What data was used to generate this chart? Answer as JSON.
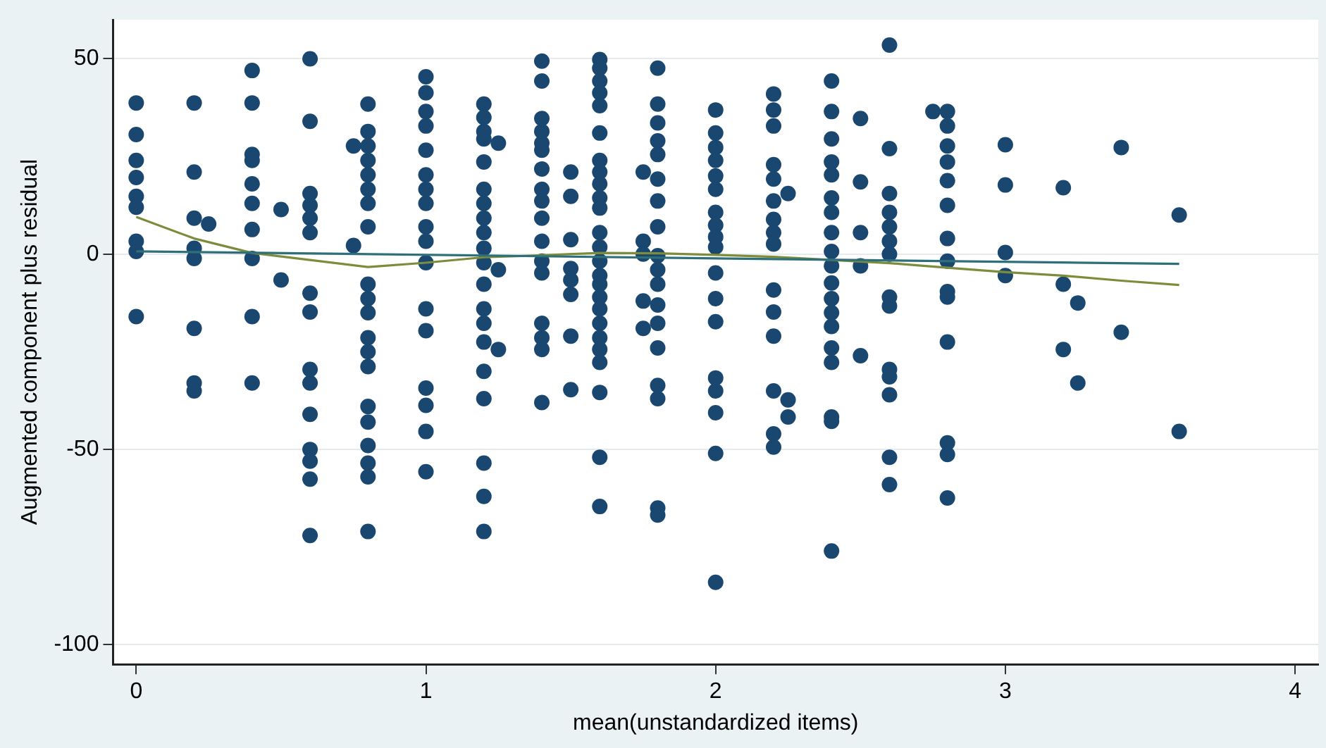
{
  "chart_data": {
    "type": "scatter",
    "xlabel": "mean(unstandardized items)",
    "ylabel": "Augmented component plus residual",
    "xlim": [
      -0.08,
      4.08
    ],
    "ylim": [
      -105,
      60
    ],
    "xticks": [
      0,
      1,
      2,
      3,
      4
    ],
    "yticks": [
      -100,
      -50,
      0,
      50
    ],
    "grid": "y",
    "legend": false,
    "series": [
      {
        "marker": "circle",
        "color": "#1a476f",
        "x": [
          0,
          0,
          0,
          0,
          0,
          0,
          0,
          0,
          0,
          0.2,
          0.2,
          0.2,
          0.25,
          0.2,
          0.2,
          0.2,
          0.2,
          0.2,
          0.4,
          0.4,
          0.4,
          0.4,
          0.4,
          0.4,
          0.4,
          0.4,
          0.4,
          0.4,
          0.5,
          0.5,
          0.6,
          0.6,
          0.6,
          0.6,
          0.6,
          0.6,
          0.6,
          0.6,
          0.6,
          0.6,
          0.6,
          0.6,
          0.6,
          0.6,
          0.6,
          0.75,
          0.75,
          0.8,
          0.8,
          0.8,
          0.8,
          0.8,
          0.8,
          0.8,
          0.8,
          0.8,
          0.8,
          0.8,
          0.8,
          0.8,
          0.8,
          0.8,
          0.8,
          0.8,
          0.8,
          0.8,
          0.8,
          1,
          1,
          1,
          1,
          1,
          1,
          1,
          1,
          1,
          1,
          1,
          1,
          1,
          1,
          1,
          1,
          1,
          1.2,
          1.2,
          1.2,
          1.2,
          1.25,
          1.2,
          1.2,
          1.2,
          1.2,
          1.2,
          1.2,
          1.2,
          1.25,
          1.2,
          1.2,
          1.2,
          1.2,
          1.25,
          1.2,
          1.2,
          1.2,
          1.2,
          1.2,
          1.4,
          1.4,
          1.4,
          1.4,
          1.4,
          1.4,
          1.4,
          1.4,
          1.4,
          1.4,
          1.4,
          1.4,
          1.4,
          1.4,
          1.4,
          1.4,
          1.4,
          1.5,
          1.5,
          1.5,
          1.5,
          1.5,
          1.5,
          1.5,
          1.5,
          1.6,
          1.6,
          1.6,
          1.6,
          1.6,
          1.6,
          1.6,
          1.6,
          1.6,
          1.6,
          1.6,
          1.6,
          1.6,
          1.6,
          1.6,
          1.6,
          1.6,
          1.6,
          1.6,
          1.6,
          1.6,
          1.6,
          1.6,
          1.6,
          1.6,
          1.75,
          1.75,
          1.75,
          1.75,
          1.75,
          1.8,
          1.8,
          1.8,
          1.8,
          1.8,
          1.8,
          1.8,
          1.8,
          1.8,
          1.8,
          1.8,
          1.8,
          1.8,
          1.8,
          1.8,
          1.8,
          1.8,
          1.8,
          2,
          2,
          2,
          2,
          2,
          2,
          2,
          2,
          2,
          2,
          2,
          2,
          2,
          2,
          2,
          2,
          2,
          2,
          2.2,
          2.2,
          2.2,
          2.2,
          2.2,
          2.2,
          2.2,
          2.2,
          2.2,
          2.2,
          2.2,
          2.2,
          2.2,
          2.2,
          2.2,
          2.25,
          2.25,
          2.25,
          2.4,
          2.4,
          2.4,
          2.4,
          2.4,
          2.4,
          2.4,
          2.4,
          2.4,
          2.4,
          2.4,
          2.4,
          2.4,
          2.4,
          2.4,
          2.4,
          2.4,
          2.4,
          2.4,
          2.5,
          2.5,
          2.5,
          2.5,
          2.5,
          2.6,
          2.6,
          2.6,
          2.6,
          2.6,
          2.6,
          2.6,
          2.6,
          2.6,
          2.6,
          2.6,
          2.6,
          2.6,
          2.6,
          2.75,
          2.8,
          2.8,
          2.8,
          2.8,
          2.8,
          2.8,
          2.8,
          2.8,
          2.8,
          2.8,
          2.8,
          2.8,
          2.8,
          2.8,
          3,
          3,
          3,
          3,
          3.2,
          3.2,
          3.2,
          3.25,
          3.25,
          3.4,
          3.4,
          3.6,
          3.6
        ],
        "values": [
          38.7,
          30.6,
          24,
          19.6,
          14.8,
          12,
          3.3,
          0.7,
          -16,
          38.7,
          21,
          9.2,
          7.7,
          1.5,
          -1.1,
          -19,
          -33,
          -35,
          47,
          38.7,
          25.5,
          24,
          18,
          13,
          6.3,
          -1.1,
          -16,
          -33,
          11.4,
          -6.6,
          50,
          34,
          15.5,
          12.5,
          9.2,
          5.5,
          -10,
          -14.8,
          -29.5,
          -33,
          -41,
          -50,
          -53,
          -57.6,
          -72,
          27.7,
          2.2,
          38.4,
          31.4,
          27.7,
          24,
          20.3,
          16.6,
          13,
          7,
          -7.7,
          -11.4,
          -15,
          -21.4,
          -25,
          -28.8,
          -39,
          -43,
          -49,
          -53.5,
          -57,
          -71,
          45.4,
          41.3,
          36.5,
          32.8,
          26.6,
          20.3,
          16.6,
          13,
          7,
          3.3,
          -2.2,
          -14,
          -19.6,
          -34.3,
          -38.7,
          -45.4,
          -55.7,
          38.4,
          35,
          31.4,
          29.5,
          28.4,
          23.6,
          16.6,
          13,
          9.2,
          5.5,
          1.5,
          -2.2,
          -4,
          -7.7,
          -14,
          -17.7,
          -22.5,
          -24.4,
          -30,
          -37,
          -53.5,
          -62,
          -71,
          49.4,
          44.3,
          34.7,
          31.4,
          28.4,
          26.6,
          21.8,
          16.6,
          13.6,
          9.2,
          3.3,
          -1.8,
          -4.8,
          -17.7,
          -21.4,
          -24.4,
          -38,
          21,
          14.8,
          3.7,
          -3.7,
          -6.6,
          -10.3,
          -21,
          -34.7,
          49.8,
          47.6,
          44.3,
          41.3,
          38,
          31,
          24,
          21,
          18,
          14.4,
          11.8,
          5.5,
          1.8,
          -1.8,
          -5.5,
          -7.7,
          -11,
          -14,
          -17.7,
          -21.4,
          -24.4,
          -27.7,
          -35.4,
          -52,
          -64.6,
          21,
          3.3,
          0,
          -12,
          -19,
          47.6,
          38.4,
          33.6,
          29,
          25.5,
          19.2,
          13.6,
          7,
          -0.4,
          -4,
          -7.7,
          -13,
          -17.7,
          -24,
          -33.6,
          -37,
          -65,
          -66.8,
          36.9,
          31,
          27.3,
          24,
          20,
          16.6,
          10.7,
          7.4,
          4.4,
          1.8,
          -4.8,
          -11.4,
          -17.3,
          -31.7,
          -35,
          -40.6,
          -51,
          -84,
          41,
          36.9,
          32.8,
          22.9,
          19.2,
          13.6,
          8.9,
          5.5,
          2.6,
          -9.2,
          -14.8,
          -21,
          -35,
          -46,
          -49.4,
          15.5,
          -37.3,
          -41.7,
          44.3,
          36.5,
          29.5,
          23.6,
          20.3,
          14.4,
          10.7,
          5.5,
          0.7,
          -3,
          -7.4,
          -11.4,
          -15,
          -18.5,
          -24,
          -27.7,
          -41.7,
          -42.8,
          -76,
          34.7,
          18.5,
          5.5,
          -3,
          -26,
          53.5,
          27,
          15.5,
          10.7,
          7,
          3.3,
          0,
          -11,
          -13.3,
          -29.5,
          -31.4,
          -36,
          -52,
          -59,
          36.5,
          36.5,
          32.8,
          27.7,
          23.6,
          18.8,
          12.5,
          4,
          -1.8,
          -9.6,
          -11,
          -22.5,
          -48.3,
          -51.3,
          -62.4,
          28,
          17.7,
          0.4,
          -5.5,
          17,
          -7.7,
          -24.4,
          -12.5,
          -33,
          27.3,
          -20,
          10,
          -45.4
        ]
      },
      {
        "type": "line",
        "marker": "none",
        "color": "#2e6f7a",
        "x": [
          0,
          3.6
        ],
        "values": [
          0.7,
          -2.5
        ]
      },
      {
        "type": "line",
        "marker": "none",
        "color": "#7d8c3b",
        "x": [
          0,
          0.2,
          0.4,
          0.6,
          0.8,
          1,
          1.2,
          1.4,
          1.6,
          1.8,
          2,
          2.2,
          2.4,
          2.6,
          2.8,
          3,
          3.2,
          3.4,
          3.6
        ],
        "values": [
          9.5,
          4,
          0.3,
          -1.5,
          -3.3,
          -2.2,
          -0.8,
          -0.3,
          0.3,
          0.2,
          -0.2,
          -0.7,
          -1.5,
          -2.3,
          -3.5,
          -4.6,
          -5.5,
          -6.8,
          -7.9
        ]
      }
    ]
  }
}
